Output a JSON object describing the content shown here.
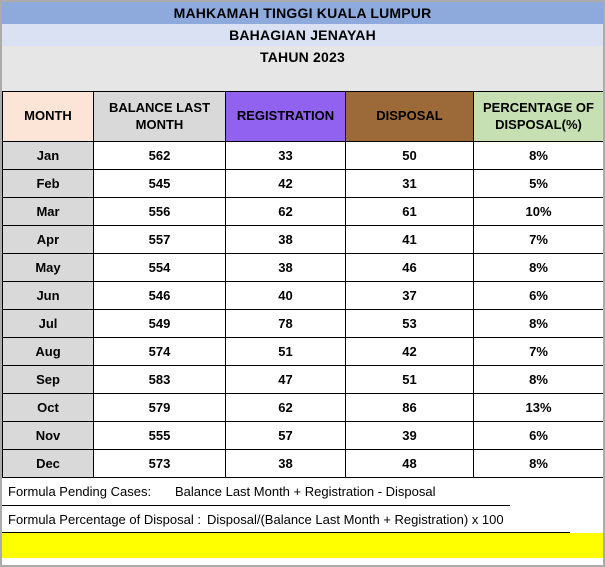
{
  "header": {
    "title": "MAHKAMAH TINGGI KUALA LUMPUR",
    "subtitle": "BAHAGIAN JENAYAH",
    "year": "TAHUN 2023"
  },
  "table": {
    "columns": [
      "MONTH",
      "BALANCE LAST MONTH",
      "REGISTRATION",
      "DISPOSAL",
      "PERCENTAGE OF DISPOSAL(%)"
    ],
    "rows": [
      {
        "month": "Jan",
        "balance": "562",
        "registration": "33",
        "disposal": "50",
        "percentage": "8%"
      },
      {
        "month": "Feb",
        "balance": "545",
        "registration": "42",
        "disposal": "31",
        "percentage": "5%"
      },
      {
        "month": "Mar",
        "balance": "556",
        "registration": "62",
        "disposal": "61",
        "percentage": "10%"
      },
      {
        "month": "Apr",
        "balance": "557",
        "registration": "38",
        "disposal": "41",
        "percentage": "7%"
      },
      {
        "month": "May",
        "balance": "554",
        "registration": "38",
        "disposal": "46",
        "percentage": "8%"
      },
      {
        "month": "Jun",
        "balance": "546",
        "registration": "40",
        "disposal": "37",
        "percentage": "6%"
      },
      {
        "month": "Jul",
        "balance": "549",
        "registration": "78",
        "disposal": "53",
        "percentage": "8%"
      },
      {
        "month": "Aug",
        "balance": "574",
        "registration": "51",
        "disposal": "42",
        "percentage": "7%"
      },
      {
        "month": "Sep",
        "balance": "583",
        "registration": "47",
        "disposal": "51",
        "percentage": "8%"
      },
      {
        "month": "Oct",
        "balance": "579",
        "registration": "62",
        "disposal": "86",
        "percentage": "13%"
      },
      {
        "month": "Nov",
        "balance": "555",
        "registration": "57",
        "disposal": "39",
        "percentage": "6%"
      },
      {
        "month": "Dec",
        "balance": "573",
        "registration": "38",
        "disposal": "48",
        "percentage": "8%"
      }
    ]
  },
  "formulas": {
    "pending_label": "Formula Pending Cases:",
    "pending_value": "Balance Last Month + Registration - Disposal",
    "percentage_label": "Formula Percentage of Disposal :",
    "percentage_value": "Disposal/(Balance Last Month + Registration) x 100"
  },
  "colors": {
    "title_bar": "#8EA9DB",
    "subtitle_bar": "#D9E1F2",
    "year_band": "#E7E6E6",
    "month_header": "#FCE4D6",
    "balance_header": "#D9D9D9",
    "registration_header": "#9161F0",
    "disposal_header": "#9C6A39",
    "percentage_header": "#C6E0B4",
    "month_column": "#D9D9D9",
    "highlight_row": "#FFFF00",
    "grid_border": "#000000"
  }
}
